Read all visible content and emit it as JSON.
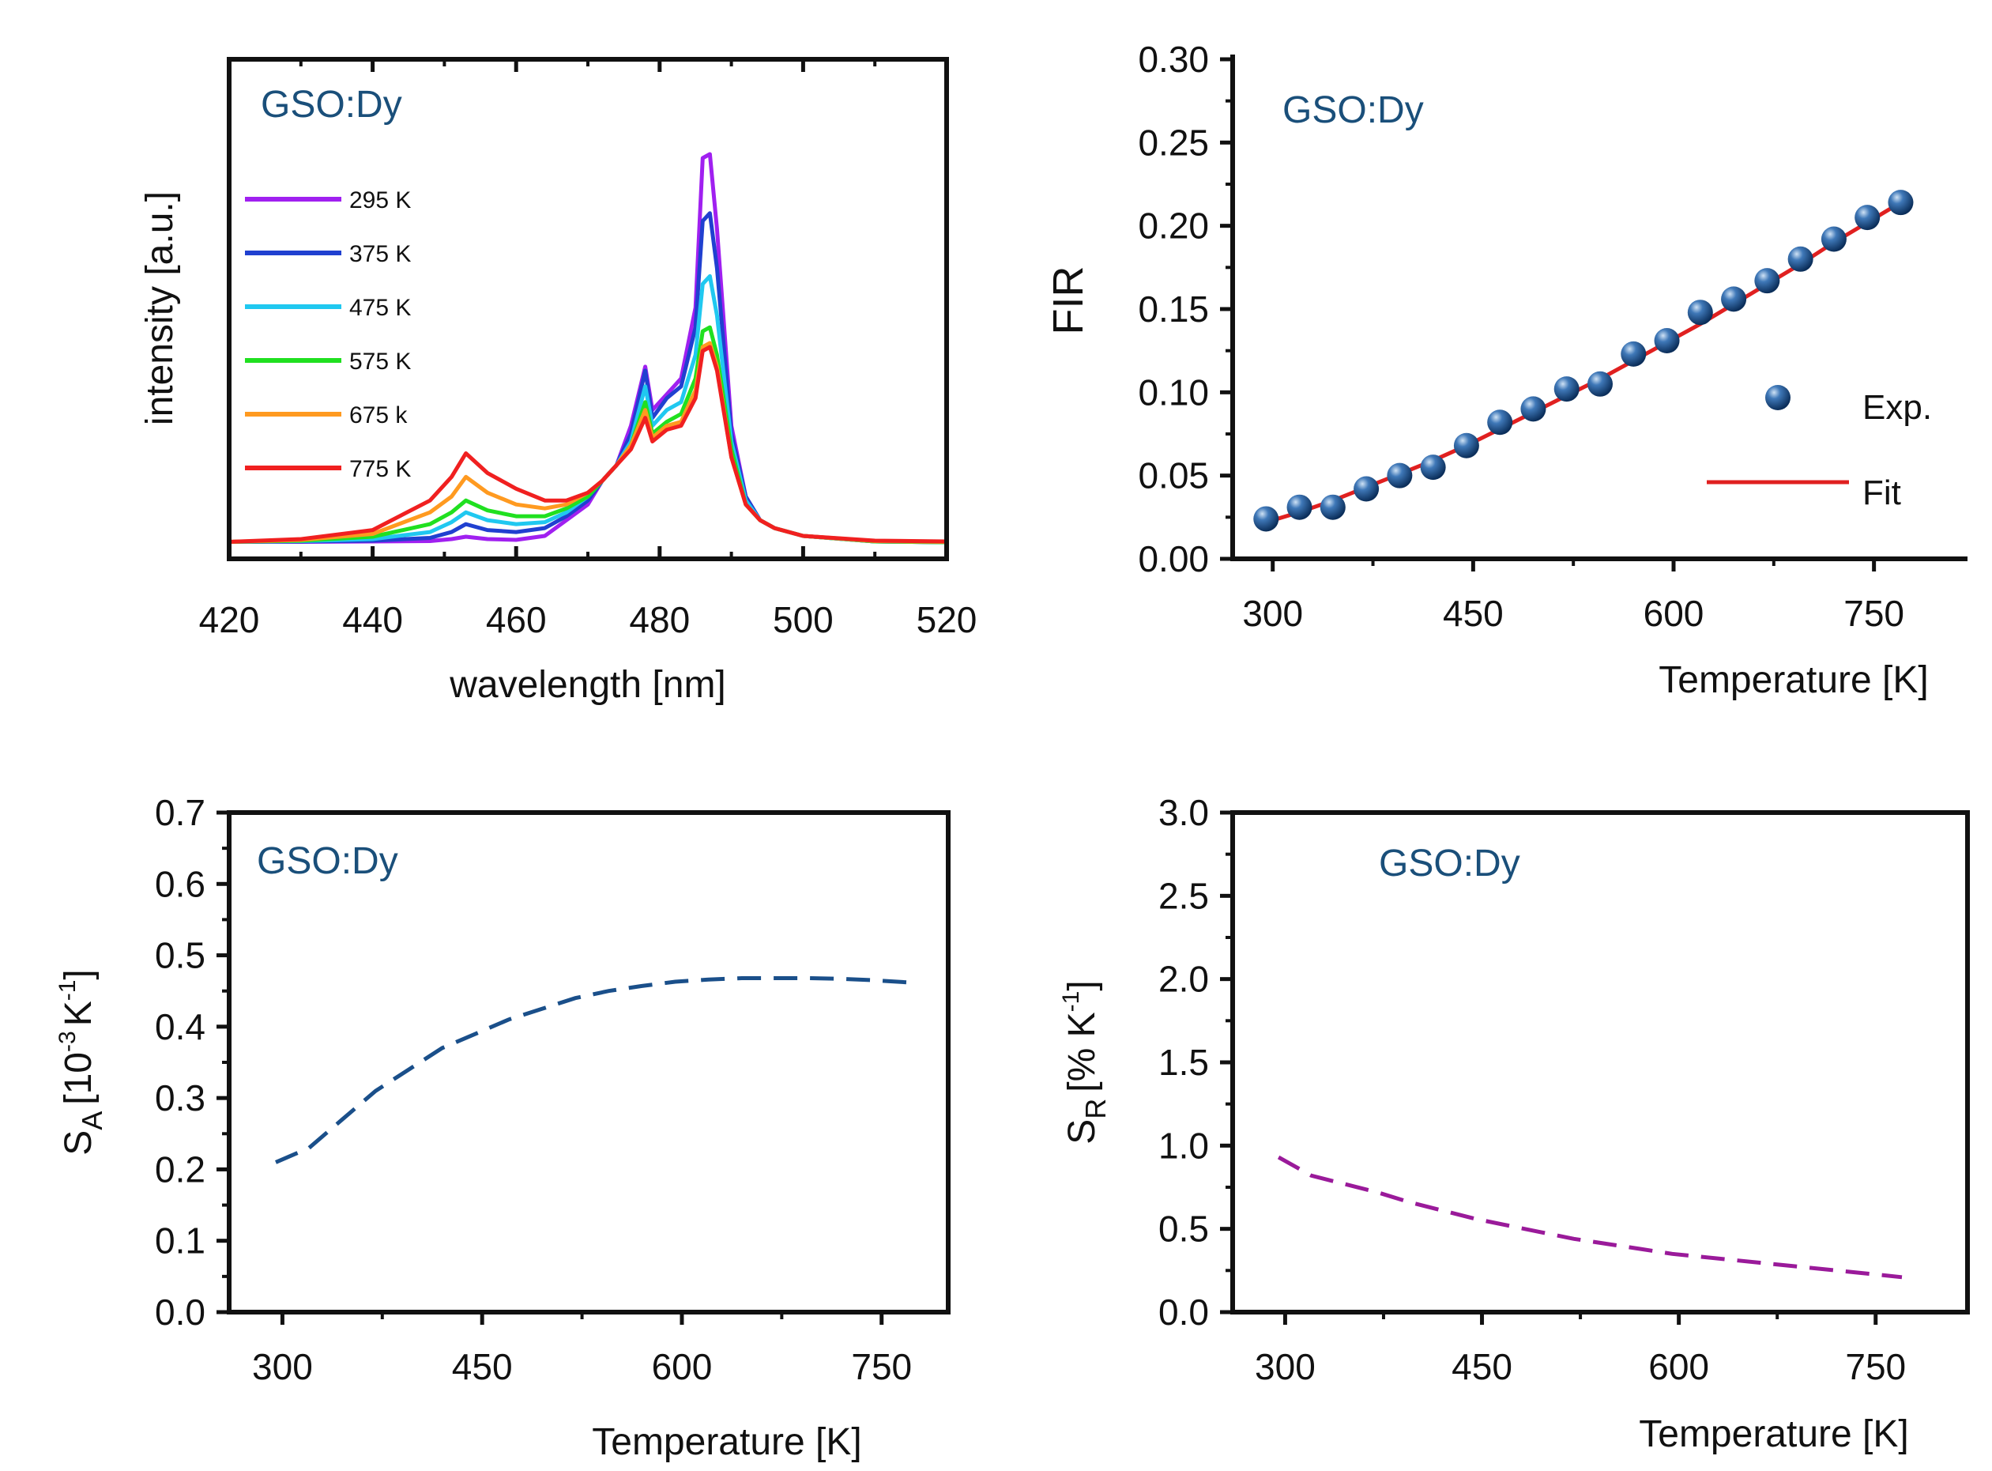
{
  "charts": [
    {
      "type": "line",
      "panel_label": "GSO:Dy",
      "xlabel": "wavelength [nm]",
      "ylabel": "intensity [a.u.]",
      "xlim": [
        420,
        520
      ],
      "ylim": [
        0,
        1.0
      ],
      "xticks": [
        "420",
        "440",
        "460",
        "480",
        "500",
        "520"
      ],
      "yticks": [],
      "series": [
        {
          "name": "295 K",
          "color": "#a020f0",
          "values": [
            [
              420,
              0.005
            ],
            [
              430,
              0.005
            ],
            [
              440,
              0.006
            ],
            [
              448,
              0.007
            ],
            [
              451,
              0.012
            ],
            [
              453,
              0.018
            ],
            [
              456,
              0.012
            ],
            [
              460,
              0.01
            ],
            [
              464,
              0.02
            ],
            [
              467,
              0.06
            ],
            [
              470,
              0.1
            ],
            [
              472,
              0.16
            ],
            [
              474,
              0.2
            ],
            [
              476,
              0.3
            ],
            [
              478,
              0.45
            ],
            [
              479,
              0.34
            ],
            [
              481,
              0.38
            ],
            [
              483,
              0.42
            ],
            [
              485,
              0.6
            ],
            [
              486,
              0.98
            ],
            [
              487,
              0.99
            ],
            [
              488,
              0.8
            ],
            [
              490,
              0.3
            ],
            [
              492,
              0.12
            ],
            [
              494,
              0.06
            ],
            [
              496,
              0.04
            ],
            [
              500,
              0.02
            ],
            [
              510,
              0.006
            ],
            [
              520,
              0.004
            ]
          ]
        },
        {
          "name": "375 K",
          "color": "#2040d0",
          "values": [
            [
              420,
              0.005
            ],
            [
              430,
              0.006
            ],
            [
              440,
              0.008
            ],
            [
              448,
              0.015
            ],
            [
              451,
              0.03
            ],
            [
              453,
              0.05
            ],
            [
              456,
              0.035
            ],
            [
              460,
              0.03
            ],
            [
              464,
              0.04
            ],
            [
              467,
              0.07
            ],
            [
              470,
              0.11
            ],
            [
              472,
              0.16
            ],
            [
              474,
              0.2
            ],
            [
              476,
              0.28
            ],
            [
              478,
              0.44
            ],
            [
              479,
              0.32
            ],
            [
              481,
              0.37
            ],
            [
              483,
              0.4
            ],
            [
              485,
              0.55
            ],
            [
              486,
              0.82
            ],
            [
              487,
              0.84
            ],
            [
              488,
              0.7
            ],
            [
              490,
              0.28
            ],
            [
              492,
              0.12
            ],
            [
              494,
              0.06
            ],
            [
              496,
              0.04
            ],
            [
              500,
              0.02
            ],
            [
              510,
              0.006
            ],
            [
              520,
              0.004
            ]
          ]
        },
        {
          "name": "475 K",
          "color": "#20c8f0",
          "values": [
            [
              420,
              0.005
            ],
            [
              430,
              0.007
            ],
            [
              440,
              0.012
            ],
            [
              448,
              0.03
            ],
            [
              451,
              0.055
            ],
            [
              453,
              0.08
            ],
            [
              456,
              0.06
            ],
            [
              460,
              0.05
            ],
            [
              464,
              0.055
            ],
            [
              467,
              0.08
            ],
            [
              470,
              0.12
            ],
            [
              472,
              0.16
            ],
            [
              474,
              0.2
            ],
            [
              476,
              0.26
            ],
            [
              478,
              0.4
            ],
            [
              479,
              0.3
            ],
            [
              481,
              0.34
            ],
            [
              483,
              0.36
            ],
            [
              485,
              0.48
            ],
            [
              486,
              0.66
            ],
            [
              487,
              0.68
            ],
            [
              488,
              0.58
            ],
            [
              490,
              0.26
            ],
            [
              492,
              0.11
            ],
            [
              494,
              0.06
            ],
            [
              496,
              0.04
            ],
            [
              500,
              0.02
            ],
            [
              510,
              0.006
            ],
            [
              520,
              0.004
            ]
          ]
        },
        {
          "name": "575 K",
          "color": "#20e020",
          "values": [
            [
              420,
              0.005
            ],
            [
              430,
              0.008
            ],
            [
              440,
              0.018
            ],
            [
              448,
              0.05
            ],
            [
              451,
              0.08
            ],
            [
              453,
              0.11
            ],
            [
              456,
              0.085
            ],
            [
              460,
              0.07
            ],
            [
              464,
              0.07
            ],
            [
              467,
              0.09
            ],
            [
              470,
              0.12
            ],
            [
              472,
              0.16
            ],
            [
              474,
              0.2
            ],
            [
              476,
              0.25
            ],
            [
              478,
              0.36
            ],
            [
              479,
              0.28
            ],
            [
              481,
              0.31
            ],
            [
              483,
              0.33
            ],
            [
              485,
              0.42
            ],
            [
              486,
              0.54
            ],
            [
              487,
              0.55
            ],
            [
              488,
              0.48
            ],
            [
              490,
              0.24
            ],
            [
              492,
              0.1
            ],
            [
              494,
              0.06
            ],
            [
              496,
              0.04
            ],
            [
              500,
              0.02
            ],
            [
              510,
              0.006
            ],
            [
              520,
              0.004
            ]
          ]
        },
        {
          "name": "675 k",
          "color": "#ff9a20",
          "values": [
            [
              420,
              0.005
            ],
            [
              430,
              0.01
            ],
            [
              440,
              0.025
            ],
            [
              448,
              0.08
            ],
            [
              451,
              0.12
            ],
            [
              453,
              0.17
            ],
            [
              456,
              0.13
            ],
            [
              460,
              0.1
            ],
            [
              464,
              0.09
            ],
            [
              467,
              0.1
            ],
            [
              470,
              0.13
            ],
            [
              472,
              0.16
            ],
            [
              474,
              0.2
            ],
            [
              476,
              0.25
            ],
            [
              478,
              0.34
            ],
            [
              479,
              0.27
            ],
            [
              481,
              0.3
            ],
            [
              483,
              0.31
            ],
            [
              485,
              0.39
            ],
            [
              486,
              0.5
            ],
            [
              487,
              0.51
            ],
            [
              488,
              0.45
            ],
            [
              490,
              0.22
            ],
            [
              492,
              0.1
            ],
            [
              494,
              0.06
            ],
            [
              496,
              0.04
            ],
            [
              500,
              0.02
            ],
            [
              510,
              0.007
            ],
            [
              520,
              0.005
            ]
          ]
        },
        {
          "name": "775 K",
          "color": "#f02020",
          "values": [
            [
              420,
              0.005
            ],
            [
              430,
              0.012
            ],
            [
              440,
              0.035
            ],
            [
              448,
              0.11
            ],
            [
              451,
              0.17
            ],
            [
              453,
              0.23
            ],
            [
              456,
              0.18
            ],
            [
              460,
              0.14
            ],
            [
              464,
              0.11
            ],
            [
              467,
              0.11
            ],
            [
              470,
              0.13
            ],
            [
              472,
              0.16
            ],
            [
              474,
              0.2
            ],
            [
              476,
              0.24
            ],
            [
              478,
              0.32
            ],
            [
              479,
              0.26
            ],
            [
              481,
              0.29
            ],
            [
              483,
              0.3
            ],
            [
              485,
              0.37
            ],
            [
              486,
              0.49
            ],
            [
              487,
              0.5
            ],
            [
              488,
              0.44
            ],
            [
              490,
              0.22
            ],
            [
              492,
              0.1
            ],
            [
              494,
              0.06
            ],
            [
              496,
              0.04
            ],
            [
              500,
              0.02
            ],
            [
              510,
              0.008
            ],
            [
              520,
              0.006
            ]
          ]
        }
      ]
    },
    {
      "type": "scatter",
      "panel_label": "GSO:Dy",
      "xlabel": "Temperature [K]",
      "ylabel": "FIR",
      "xlim": [
        270,
        820
      ],
      "ylim": [
        0.0,
        0.3
      ],
      "xticks": [
        "300",
        "450",
        "600",
        "750"
      ],
      "xtick_values": [
        300,
        450,
        600,
        750
      ],
      "yticks": [
        "0.00",
        "0.05",
        "0.10",
        "0.15",
        "0.20",
        "0.25",
        "0.30"
      ],
      "ytick_values": [
        0.0,
        0.05,
        0.1,
        0.15,
        0.2,
        0.25,
        0.3
      ],
      "legend": {
        "exp_label": "Exp.",
        "fit_label": "Fit"
      },
      "series": [
        {
          "name": "Exp.",
          "color": "#1a4f8a",
          "x": [
            295,
            320,
            345,
            370,
            395,
            420,
            445,
            470,
            495,
            520,
            545,
            570,
            595,
            620,
            645,
            670,
            695,
            720,
            745,
            770
          ],
          "y": [
            0.024,
            0.031,
            0.031,
            0.042,
            0.05,
            0.055,
            0.068,
            0.082,
            0.09,
            0.102,
            0.105,
            0.123,
            0.131,
            0.148,
            0.156,
            0.167,
            0.18,
            0.192,
            0.205,
            0.214
          ]
        },
        {
          "name": "Fit",
          "color": "#e02020",
          "x": [
            295,
            320,
            345,
            370,
            395,
            420,
            445,
            470,
            495,
            520,
            545,
            570,
            595,
            620,
            645,
            670,
            695,
            720,
            745,
            770
          ],
          "y": [
            0.022,
            0.028,
            0.035,
            0.043,
            0.051,
            0.059,
            0.068,
            0.078,
            0.088,
            0.098,
            0.108,
            0.119,
            0.13,
            0.141,
            0.153,
            0.165,
            0.177,
            0.19,
            0.202,
            0.214
          ]
        }
      ]
    },
    {
      "type": "line",
      "panel_label": "GSO:Dy",
      "xlabel": "Temperature [K]",
      "ylabel": "S",
      "ylabel_sub": "A",
      "ylabel_rest": "[10",
      "ylabel_sup": "-3",
      "ylabel_rest2": "K",
      "ylabel_sup2": "-1",
      "ylabel_end": "]",
      "xlim": [
        260,
        800
      ],
      "ylim": [
        0.0,
        0.7
      ],
      "xticks": [
        "300",
        "450",
        "600",
        "750"
      ],
      "xtick_values": [
        300,
        450,
        600,
        750
      ],
      "yticks": [
        "0.0",
        "0.1",
        "0.2",
        "0.3",
        "0.4",
        "0.5",
        "0.6",
        "0.7"
      ],
      "ytick_values": [
        0.0,
        0.1,
        0.2,
        0.3,
        0.4,
        0.5,
        0.6,
        0.7
      ],
      "series": [
        {
          "name": "SA",
          "color": "#1a4f8a",
          "x": [
            295,
            320,
            345,
            370,
            395,
            420,
            445,
            470,
            495,
            520,
            545,
            570,
            595,
            620,
            645,
            670,
            695,
            720,
            745,
            770
          ],
          "y": [
            0.21,
            0.23,
            0.27,
            0.31,
            0.34,
            0.37,
            0.39,
            0.41,
            0.425,
            0.44,
            0.45,
            0.457,
            0.463,
            0.466,
            0.468,
            0.468,
            0.468,
            0.467,
            0.465,
            0.462
          ]
        }
      ]
    },
    {
      "type": "line",
      "panel_label": "GSO:Dy",
      "xlabel": "Temperature [K]",
      "ylabel": "S",
      "ylabel_sub": "R",
      "ylabel_rest": "[% K",
      "ylabel_sup": "-1",
      "ylabel_end": "]",
      "xlim": [
        260,
        820
      ],
      "ylim": [
        0.0,
        3.0
      ],
      "xticks": [
        "300",
        "450",
        "600",
        "750"
      ],
      "xtick_values": [
        300,
        450,
        600,
        750
      ],
      "yticks": [
        "0.0",
        "0.5",
        "1.0",
        "1.5",
        "2.0",
        "2.5",
        "3.0"
      ],
      "ytick_values": [
        0.0,
        0.5,
        1.0,
        1.5,
        2.0,
        2.5,
        3.0
      ],
      "series": [
        {
          "name": "SR",
          "color": "#9a1a9a",
          "x": [
            295,
            320,
            345,
            370,
            395,
            420,
            445,
            470,
            495,
            520,
            545,
            570,
            595,
            620,
            645,
            670,
            695,
            720,
            745,
            770
          ],
          "y": [
            0.93,
            0.82,
            0.77,
            0.72,
            0.66,
            0.61,
            0.56,
            0.52,
            0.48,
            0.44,
            0.41,
            0.38,
            0.35,
            0.33,
            0.31,
            0.29,
            0.27,
            0.25,
            0.23,
            0.21
          ]
        }
      ]
    }
  ]
}
